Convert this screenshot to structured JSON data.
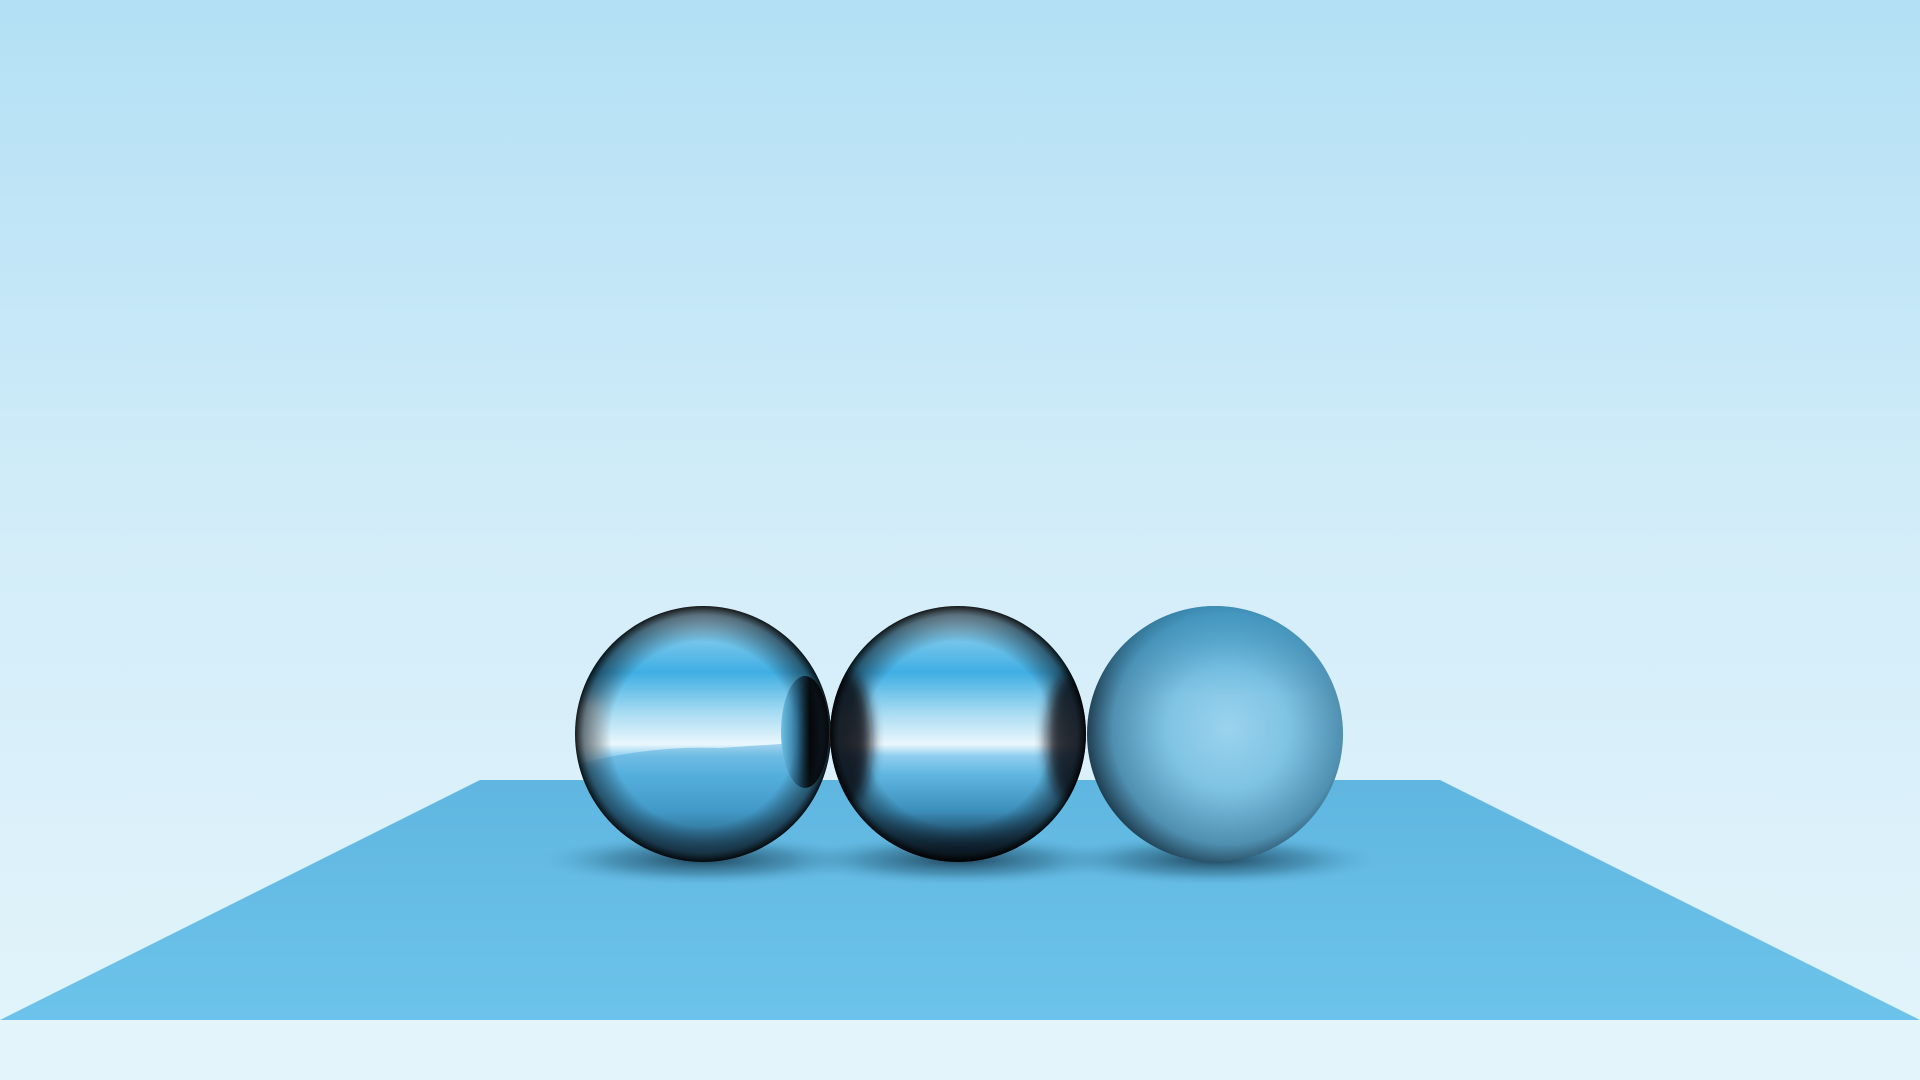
{
  "scene": {
    "kind": "ray-traced render",
    "objects": [
      {
        "type": "sphere",
        "material": "mirror",
        "name": "left-sphere"
      },
      {
        "type": "sphere",
        "material": "mirror",
        "name": "middle-sphere"
      },
      {
        "type": "sphere",
        "material": "diffuse-metal",
        "name": "right-sphere"
      },
      {
        "type": "plane",
        "material": "diffuse",
        "name": "ground-plane"
      }
    ],
    "colors": {
      "sky_top": "#b3e0f5",
      "sky_bottom": "#e3f4fb",
      "plane": "#66bde6",
      "plane_far": "#5fb6e0",
      "sphere_highlight": "#4fb6e5",
      "sphere_dark": "#0a0f14",
      "diffuse_sphere": "#8ecde8"
    }
  }
}
